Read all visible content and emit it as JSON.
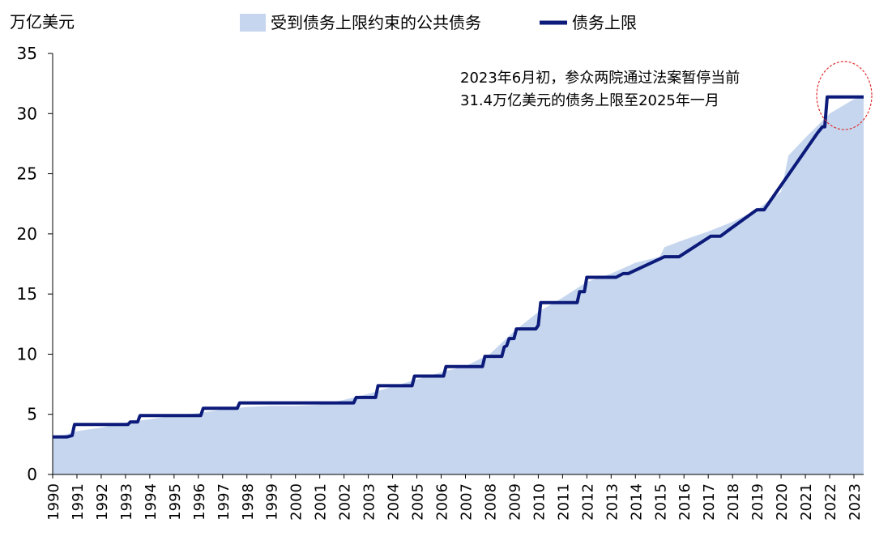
{
  "chart_data": {
    "type": "area",
    "ylabel": "万亿美元",
    "ylim": [
      0,
      35
    ],
    "y_ticks": [
      0,
      5,
      10,
      15,
      20,
      25,
      30,
      35
    ],
    "x_range": [
      1990,
      2023.4
    ],
    "x_tick_labels": [
      "1990",
      "1991",
      "1992",
      "1993",
      "1994",
      "1995",
      "1996",
      "1997",
      "1998",
      "1999",
      "2000",
      "2001",
      "2002",
      "2003",
      "2004",
      "2005",
      "2006",
      "2007",
      "2008",
      "2009",
      "2010",
      "2011",
      "2012",
      "2013",
      "2014",
      "2015",
      "2016",
      "2017",
      "2018",
      "2019",
      "2020",
      "2021",
      "2022",
      "2023"
    ],
    "legend": {
      "position": "top"
    },
    "annotation": [
      "2023年6月初，参众两院通过法案暂停当前",
      "31.4万亿美元的债务上限至2025年一月"
    ],
    "highlight": {
      "x": 2022.6,
      "y": 31.5,
      "color": "#e03030"
    },
    "series": [
      {
        "name": "受到债务上限约束的公共债务",
        "type": "area",
        "color": "#c5d6ee",
        "points": [
          [
            1990,
            3.2
          ],
          [
            1990.5,
            3.3
          ],
          [
            1991,
            3.6
          ],
          [
            1992,
            3.9
          ],
          [
            1993,
            4.3
          ],
          [
            1994,
            4.6
          ],
          [
            1995,
            4.9
          ],
          [
            1996,
            5.1
          ],
          [
            1997,
            5.4
          ],
          [
            1998,
            5.6
          ],
          [
            1999,
            5.7
          ],
          [
            2000,
            5.7
          ],
          [
            2001,
            5.8
          ],
          [
            2002,
            6.2
          ],
          [
            2003,
            6.7
          ],
          [
            2004,
            7.3
          ],
          [
            2005,
            7.9
          ],
          [
            2006,
            8.5
          ],
          [
            2007,
            9.0
          ],
          [
            2008,
            10.0
          ],
          [
            2009,
            11.9
          ],
          [
            2010,
            13.5
          ],
          [
            2011,
            14.7
          ],
          [
            2012,
            16.0
          ],
          [
            2013,
            16.7
          ],
          [
            2014,
            17.6
          ],
          [
            2015,
            18.1
          ],
          [
            2015.2,
            18.9
          ],
          [
            2016,
            19.5
          ],
          [
            2017,
            20.2
          ],
          [
            2018,
            21.0
          ],
          [
            2019,
            22.0
          ],
          [
            2020,
            23.5
          ],
          [
            2020.3,
            26.5
          ],
          [
            2021,
            28.0
          ],
          [
            2022,
            30.0
          ],
          [
            2023,
            31.2
          ],
          [
            2023.4,
            31.4
          ]
        ]
      },
      {
        "name": "债务上限",
        "type": "line",
        "color": "#0c1a7a",
        "points": [
          [
            1990,
            3.12
          ],
          [
            1990.6,
            3.12
          ],
          [
            1990.8,
            3.23
          ],
          [
            1990.9,
            4.15
          ],
          [
            1993.1,
            4.15
          ],
          [
            1993.2,
            4.37
          ],
          [
            1993.5,
            4.37
          ],
          [
            1993.6,
            4.9
          ],
          [
            1996.1,
            4.9
          ],
          [
            1996.2,
            5.5
          ],
          [
            1997.6,
            5.5
          ],
          [
            1997.7,
            5.95
          ],
          [
            2002.4,
            5.95
          ],
          [
            2002.5,
            6.4
          ],
          [
            2003.3,
            6.4
          ],
          [
            2003.4,
            7.38
          ],
          [
            2004.8,
            7.38
          ],
          [
            2004.9,
            8.18
          ],
          [
            2006.1,
            8.18
          ],
          [
            2006.2,
            8.97
          ],
          [
            2007.7,
            8.97
          ],
          [
            2007.8,
            9.82
          ],
          [
            2008.5,
            9.82
          ],
          [
            2008.6,
            10.6
          ],
          [
            2008.7,
            10.7
          ],
          [
            2008.8,
            11.3
          ],
          [
            2009.0,
            11.3
          ],
          [
            2009.1,
            12.1
          ],
          [
            2009.9,
            12.1
          ],
          [
            2010.0,
            12.4
          ],
          [
            2010.1,
            14.29
          ],
          [
            2011.6,
            14.29
          ],
          [
            2011.7,
            15.19
          ],
          [
            2011.9,
            15.19
          ],
          [
            2012.0,
            16.39
          ],
          [
            2013.2,
            16.39
          ],
          [
            2013.5,
            16.7
          ],
          [
            2013.7,
            16.7
          ],
          [
            2015.2,
            18.1
          ],
          [
            2015.8,
            18.1
          ],
          [
            2017.1,
            19.8
          ],
          [
            2017.5,
            19.8
          ],
          [
            2017.9,
            20.4
          ],
          [
            2019.0,
            22.0
          ],
          [
            2019.3,
            22.0
          ],
          [
            2021.5,
            28.4
          ],
          [
            2021.7,
            28.9
          ],
          [
            2021.8,
            28.9
          ],
          [
            2021.9,
            31.38
          ],
          [
            2023.4,
            31.38
          ]
        ]
      }
    ]
  }
}
